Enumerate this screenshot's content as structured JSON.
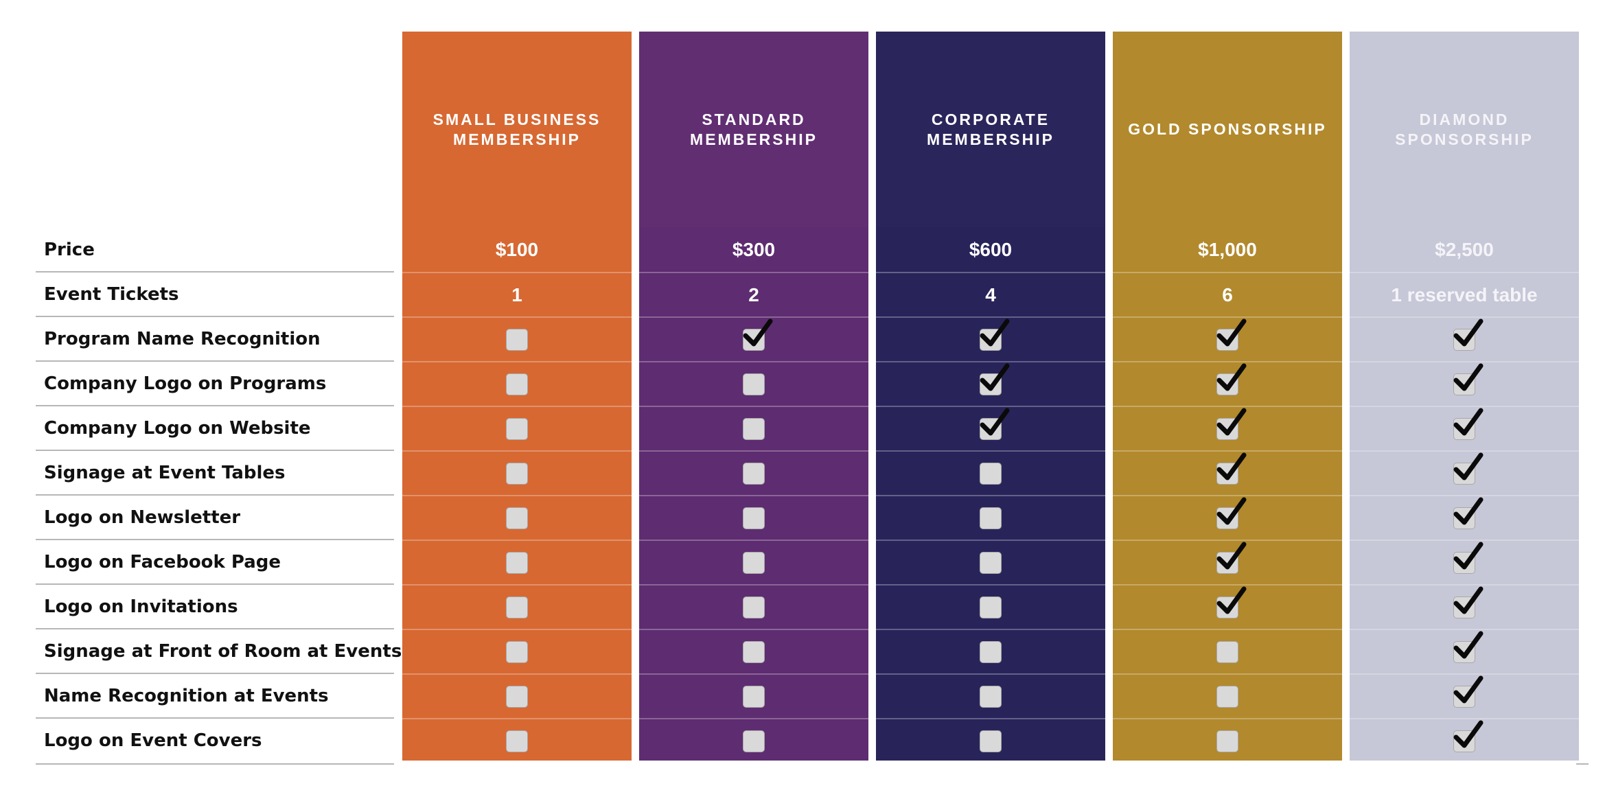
{
  "rows": [
    "Price",
    "Event Tickets",
    "Program Name Recognition",
    "Company Logo on Programs",
    "Company Logo on Website",
    "Signage at Event Tables",
    "Logo on Newsletter",
    "Logo on Facebook Page",
    "Logo on Invitations",
    "Signage at Front of Room at Events",
    "Name Recognition at Events",
    "Logo on Event Covers"
  ],
  "tiers": [
    {
      "title": "SMALL BUSINESS\nMEMBERSHIP",
      "color": "#d76832",
      "header_color": "#d76832",
      "text_color": "#ffffff",
      "price": "$100",
      "tickets": "1",
      "benefits": [
        false,
        false,
        false,
        false,
        false,
        false,
        false,
        false,
        false,
        false
      ]
    },
    {
      "title": "STANDARD\nMEMBERSHIP",
      "color": "#5e2c70",
      "header_color": "#612e72",
      "text_color": "#ffffff",
      "price": "$300",
      "tickets": "2",
      "benefits": [
        true,
        false,
        false,
        false,
        false,
        false,
        false,
        false,
        false,
        false
      ]
    },
    {
      "title": "CORPORATE\nMEMBERSHIP",
      "color": "#28245a",
      "header_color": "#2a255b",
      "text_color": "#ffffff",
      "price": "$600",
      "tickets": "4",
      "benefits": [
        true,
        true,
        true,
        false,
        false,
        false,
        false,
        false,
        false,
        false
      ]
    },
    {
      "title": "GOLD SPONSORSHIP",
      "color": "#b2892d",
      "header_color": "#b2892d",
      "text_color": "#ffffff",
      "price": "$1,000",
      "tickets": "6",
      "benefits": [
        true,
        true,
        true,
        true,
        true,
        true,
        true,
        false,
        false,
        false
      ]
    },
    {
      "title": "DIAMOND\nSPONSORSHIP",
      "color": "#c6c7d7",
      "header_color": "#c6c7d7",
      "text_color": "#f4f4f8",
      "price": "$2,500",
      "tickets": "1 reserved table",
      "benefits": [
        true,
        true,
        true,
        true,
        true,
        true,
        true,
        true,
        true,
        true
      ]
    }
  ]
}
